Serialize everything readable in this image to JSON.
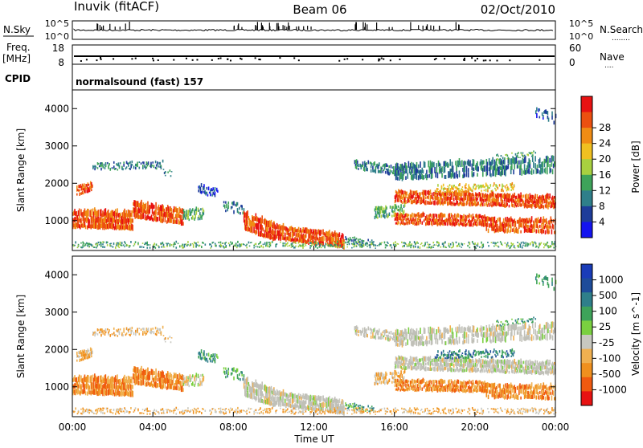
{
  "header": {
    "title": "Inuvik (fitACF)",
    "beam": "Beam 06",
    "date": "02/Oct/2010"
  },
  "noise_panel": {
    "left_label": "N.Sky",
    "right_label": "N.Search",
    "right_label_line": "........",
    "left_ticks": [
      "10^5",
      "10^0"
    ],
    "right_ticks": [
      "10^5",
      "10^0"
    ]
  },
  "freq_panel": {
    "left_label_1": "Freq.",
    "left_label_2": "[MHz]",
    "right_label": "Nave",
    "right_label_line": "....",
    "left_ticks": [
      "18",
      "8"
    ],
    "right_ticks": [
      "60",
      "0"
    ]
  },
  "cpid_panel": {
    "label": "CPID",
    "value": "normalsound (fast) 157"
  },
  "x_axis": {
    "label": "Time UT",
    "ticks": [
      "00:00",
      "04:00",
      "08:00",
      "12:00",
      "16:00",
      "20:00",
      "00:00"
    ]
  },
  "colors": {
    "power_scale": [
      "#1414f0",
      "#1e3c9a",
      "#2f7f8a",
      "#3ea35a",
      "#a8d040",
      "#f0c020",
      "#f08c14",
      "#ec5010",
      "#e81212"
    ],
    "velocity_scale": [
      "#e81212",
      "#f05a10",
      "#f0901e",
      "#f0b050",
      "#c8c8c0",
      "#7ad040",
      "#3ea35a",
      "#2f7f8a",
      "#1e4c9a",
      "#1a3cb8"
    ],
    "ground_scatter": "#c0c0b8"
  },
  "chart_data": [
    {
      "type": "heatmap",
      "name": "power",
      "ylabel": "Slant Range [km]",
      "xlabel": "",
      "y_ticks": [
        "1000",
        "2000",
        "3000",
        "4000"
      ],
      "ylim": [
        200,
        4500
      ],
      "xlim_hours": [
        0,
        24
      ],
      "colorbar_label": "Power [dB]",
      "colorbar_ticks": [
        "4",
        "8",
        "12",
        "16",
        "20",
        "24",
        "28"
      ],
      "zlim": [
        0,
        32
      ]
    },
    {
      "type": "heatmap",
      "name": "velocity",
      "ylabel": "Slant Range [km]",
      "xlabel": "Time UT",
      "y_ticks": [
        "1000",
        "2000",
        "3000",
        "4000"
      ],
      "ylim": [
        200,
        4500
      ],
      "xlim_hours": [
        0,
        24
      ],
      "colorbar_label": "Velocity [m s^-1]",
      "colorbar_ticks": [
        "1000",
        "500",
        "100",
        "25",
        "-25",
        "-100",
        "-500",
        "-1000"
      ],
      "zlim": [
        -1000,
        1000
      ]
    }
  ]
}
